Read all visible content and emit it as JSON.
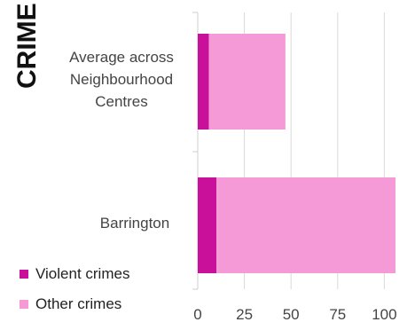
{
  "chart_data": {
    "type": "bar",
    "orientation": "horizontal",
    "stacked": true,
    "title": "CRIME",
    "categories": [
      "Average across Neighbourhood Centres",
      "Barrington"
    ],
    "series": [
      {
        "name": "Violent crimes",
        "color": "#c8109a",
        "values": [
          6,
          10
        ]
      },
      {
        "name": "Other crimes",
        "color": "#f59ad6",
        "values": [
          41,
          96
        ]
      }
    ],
    "x_ticks": [
      "0",
      "25",
      "50",
      "75",
      "100"
    ],
    "xlim": [
      0,
      106
    ],
    "grid": true,
    "legend_position": "bottom-left"
  }
}
